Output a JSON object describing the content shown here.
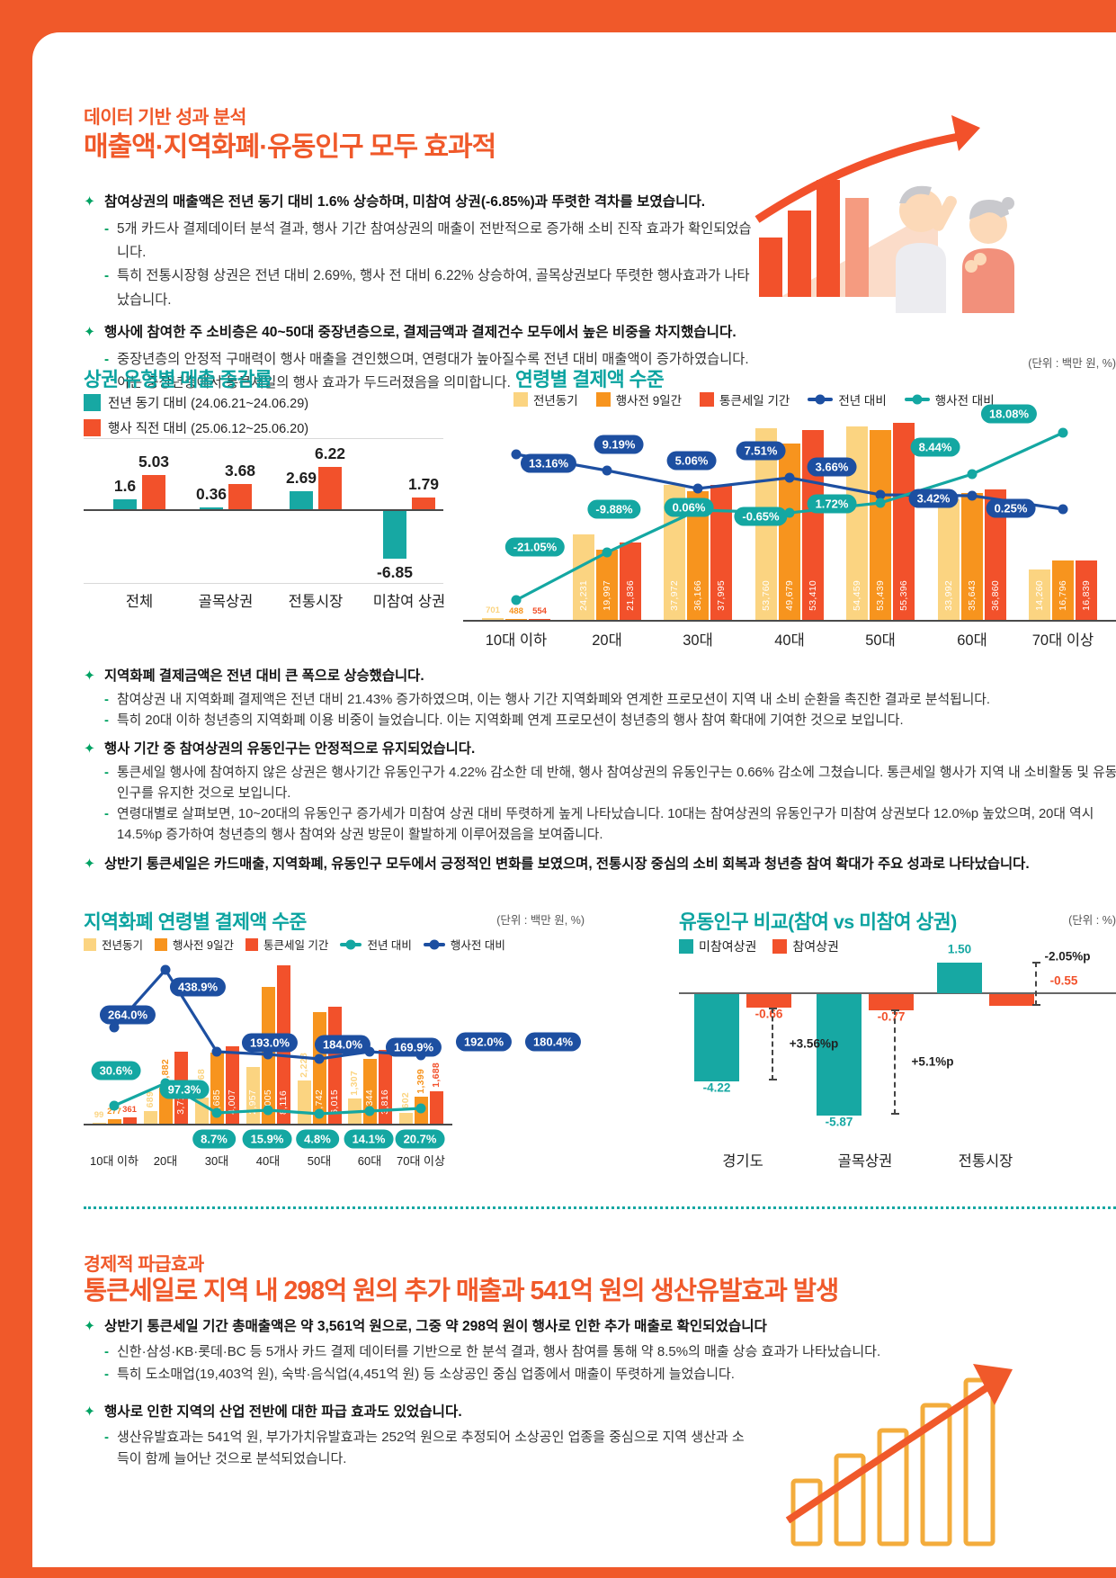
{
  "palette": {
    "frame_orange": "#f0592a",
    "heading_orange": "#f0592a",
    "title_teal": "#0ba3a0",
    "bullet_green": "#00a263",
    "badge_blue": "#1d4fa1",
    "badge_teal": "#14a7a2"
  },
  "page": {
    "section1": {
      "kicker": "데이터 기반 성과 분석",
      "title": "매출액·지역화폐·유동인구 모두 효과적",
      "bullets": [
        {
          "main": "참여상권의 매출액은 전년 동기 대비 1.6% 상승하며, 미참여 상권(-6.85%)과 뚜렷한 격차를 보였습니다.",
          "subs": [
            "5개 카드사 결제데이터 분석 결과, 행사 기간 참여상권의 매출이 전반적으로 증가해 소비 진작 효과가 확인되었습니다.",
            "특히 전통시장형 상권은 전년 대비 2.69%, 행사 전 대비 6.22% 상승하여, 골목상권보다 뚜렷한 행사효과가 나타났습니다."
          ]
        },
        {
          "main": "행사에 참여한 주 소비층은 40~50대 중장년층으로, 결제금액과 결제건수 모두에서 높은 비중을 차지했습니다.",
          "subs": [
            "중장년층의 안정적 구매력이 행사 매출을 견인했으며, 연령대가 높아질수록 전년 대비 매출액이 증가하였습니다. 이는 중장년층에서 통큰세일의 행사 효과가 두드러졌음을 의미합니다."
          ]
        }
      ]
    },
    "mid_bullets": [
      {
        "main": "지역화폐 결제금액은 전년 대비 큰 폭으로 상승했습니다.",
        "subs": [
          "참여상권 내 지역화폐 결제액은 전년 대비 21.43% 증가하였으며, 이는 행사 기간 지역화폐와 연계한 프로모션이 지역 내 소비 순환을 촉진한 결과로 분석됩니다.",
          "특히 20대 이하 청년층의 지역화폐 이용 비중이 늘었습니다. 이는 지역화폐 연계 프로모션이 청년층의 행사 참여 확대에 기여한 것으로 보입니다."
        ]
      },
      {
        "main": "행사 기간 중 참여상권의 유동인구는 안정적으로 유지되었습니다.",
        "subs": [
          "통큰세일 행사에 참여하지 않은 상권은 행사기간 유동인구가 4.22% 감소한 데 반해, 행사 참여상권의 유동인구는 0.66% 감소에 그쳤습니다. 통큰세일 행사가 지역 내 소비활동 및 유동인구를 유지한 것으로 보입니다.",
          "연령대별로 살펴보면, 10~20대의 유동인구 증가세가 미참여 상권 대비 뚜렷하게 높게 나타났습니다. 10대는 참여상권의 유동인구가 미참여 상권보다 12.0%p 높았으며, 20대 역시 14.5%p 증가하여 청년층의 행사 참여와 상권 방문이 활발하게 이루어졌음을 보여줍니다."
        ]
      },
      {
        "main": "상반기 통큰세일은 카드매출, 지역화폐, 유동인구 모두에서 긍정적인 변화를 보였으며, 전통시장 중심의 소비 회복과 청년층 참여 확대가 주요 성과로 나타났습니다.",
        "subs": []
      }
    ],
    "section2": {
      "kicker": "경제적 파급효과",
      "title": "통큰세일로 지역 내 298억 원의 추가 매출과 541억 원의 생산유발효과 발생",
      "bullets": [
        {
          "main": "상반기 통큰세일 기간 총매출액은 약 3,561억 원으로, 그중 약 298억 원이 행사로 인한 추가 매출로 확인되었습니다",
          "subs": [
            "신한·삼성·KB·롯데·BC 등 5개사 카드 결제 데이터를 기반으로 한 분석 결과, 행사 참여를 통해 약 8.5%의 매출 상승 효과가 나타났습니다.",
            "특히 도소매업(19,403억 원), 숙박·음식업(4,451억 원) 등 소상공인 중심 업종에서 매출이 뚜렷하게 늘었습니다."
          ]
        },
        {
          "main": "행사로 인한 지역의 산업 전반에 대한 파급 효과도 있었습니다.",
          "subs": [
            "생산유발효과는 541억 원, 부가가치유발효과는 252억 원으로 추정되어 소상공인 업종을 중심으로 지역 생산과 소득이 함께 늘어난 것으로 분석되었습니다."
          ]
        }
      ]
    },
    "illustrations": {
      "top": "elderly-couple-with-growth-chart",
      "bottom": "ascending-outline-bars-with-arrow"
    }
  },
  "chart_data": [
    {
      "type": "bar",
      "title": "상권 유형별 매출 증감률",
      "categories": [
        "전체",
        "골목상권",
        "전통시장",
        "미참여 상권"
      ],
      "series": [
        {
          "name": "전년 동기 대비 (24.06.21~24.06.29)",
          "color": "#17a8a3",
          "values": [
            1.6,
            0.36,
            2.69,
            -6.85
          ]
        },
        {
          "name": "행사 직전 대비 (25.06.12~25.06.20)",
          "color": "#f2512b",
          "values": [
            5.03,
            3.68,
            6.22,
            1.79
          ]
        }
      ],
      "ylim": [
        -8,
        8
      ],
      "grid": true,
      "legend_position": "top-left"
    },
    {
      "type": "bar+line",
      "title": "연령별 결제액 수준",
      "unit": "(단위 : 백만 원, %)",
      "categories": [
        "10대 이하",
        "20대",
        "30대",
        "40대",
        "50대",
        "60대",
        "70대 이상"
      ],
      "bar_series": [
        {
          "name": "전년동기",
          "color": "#fbd481",
          "values": [
            701,
            24231,
            37972,
            53760,
            54459,
            33992,
            14260
          ]
        },
        {
          "name": "행사전 9일간",
          "color": "#f7941e",
          "values": [
            488,
            19997,
            36166,
            49679,
            53439,
            35643,
            16796
          ]
        },
        {
          "name": "통큰세일 기간",
          "color": "#f2512b",
          "values": [
            554,
            21836,
            37995,
            53410,
            55396,
            36860,
            16839
          ]
        }
      ],
      "line_series": [
        {
          "name": "전년 대비",
          "color": "#1d4fa1",
          "values": [
            13.16,
            9.19,
            5.06,
            7.51,
            3.66,
            3.42,
            0.25
          ],
          "labels": [
            "13.16%",
            "9.19%",
            "5.06%",
            "7.51%",
            "3.66%",
            "3.42%",
            "0.25%"
          ]
        },
        {
          "name": "행사전 대비",
          "color": "#14a7a2",
          "values": [
            -21.05,
            -9.88,
            0.06,
            -0.65,
            1.72,
            8.44,
            18.08
          ],
          "labels": [
            "-21.05%",
            "-9.88%",
            "0.06%",
            "-0.65%",
            "1.72%",
            "8.44%",
            "18.08%"
          ]
        }
      ]
    },
    {
      "type": "bar+line",
      "title": "지역화폐 연령별 결제액 수준",
      "unit": "(단위 : 백만 원, %)",
      "categories": [
        "10대 이하",
        "20대",
        "30대",
        "40대",
        "50대",
        "60대",
        "70대 이상"
      ],
      "bar_series": [
        {
          "name": "전년동기",
          "color": "#fbd481",
          "values": [
            99,
            689,
            1368,
            2957,
            2228,
            1307,
            602
          ]
        },
        {
          "name": "행사전 9일간",
          "color": "#f7941e",
          "values": [
            277,
            1882,
            3685,
            7005,
            5742,
            3344,
            1399
          ]
        },
        {
          "name": "통큰세일 기간",
          "color": "#f2512b",
          "values": [
            361,
            3712,
            4007,
            8116,
            6015,
            3816,
            1688
          ]
        }
      ],
      "line_series": [
        {
          "name": "전년 대비",
          "color": "#14a7a2",
          "values": [
            30.6,
            97.3,
            8.7,
            15.9,
            4.8,
            14.1,
            20.7
          ],
          "labels": [
            "30.6%",
            "97.3%",
            "8.7%",
            "15.9%",
            "4.8%",
            "14.1%",
            "20.7%"
          ]
        },
        {
          "name": "행사전 대비",
          "color": "#1d4fa1",
          "values": [
            264.0,
            438.9,
            193.0,
            184.0,
            169.9,
            192.0,
            180.4
          ],
          "labels": [
            "264.0%",
            "438.9%",
            "193.0%",
            "184.0%",
            "169.9%",
            "192.0%",
            "180.4%"
          ]
        }
      ]
    },
    {
      "type": "bar",
      "title": "유동인구 비교(참여 vs 미참여 상권)",
      "unit": "(단위 : %)",
      "categories": [
        "경기도",
        "골목상권",
        "전통시장"
      ],
      "series": [
        {
          "name": "미참여상권",
          "color": "#17a8a3",
          "values": [
            -4.22,
            -5.87,
            1.5
          ]
        },
        {
          "name": "참여상권",
          "color": "#f2512b",
          "values": [
            -0.66,
            -0.77,
            -0.55
          ]
        }
      ],
      "annotations": [
        "+3.56%p",
        "+5.1%p",
        "-2.05%p"
      ]
    }
  ]
}
